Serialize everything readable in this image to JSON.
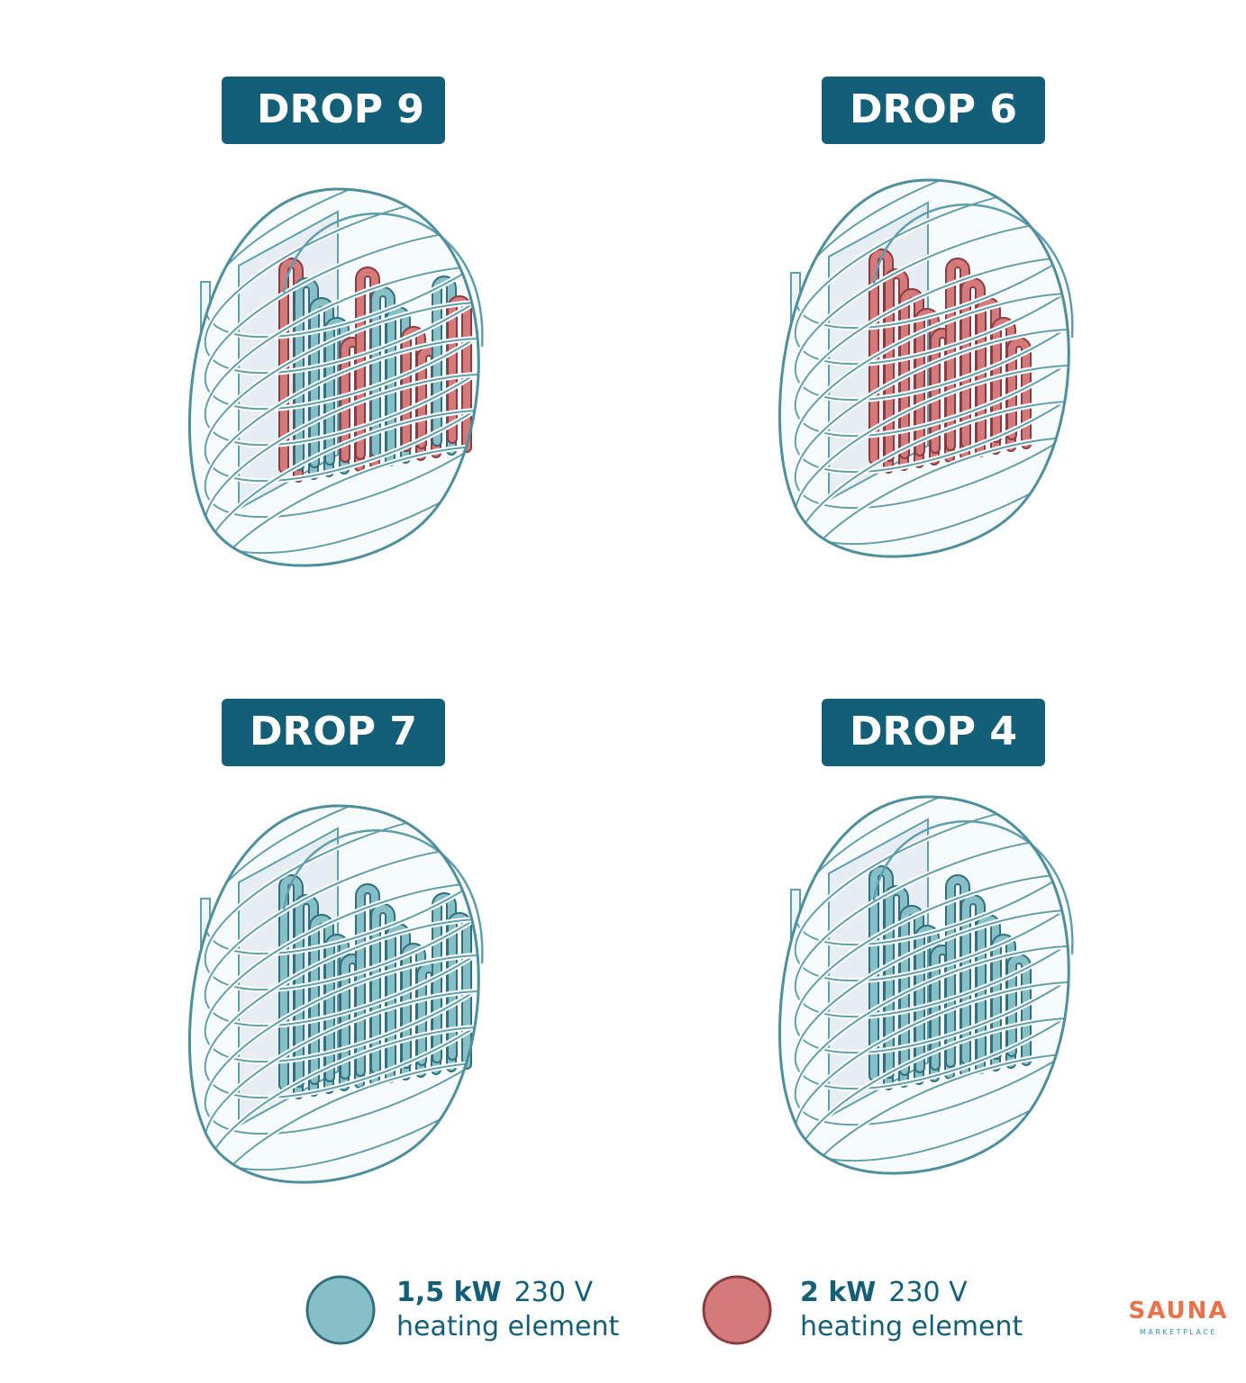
{
  "panels": [
    {
      "title": "DROP 9"
    },
    {
      "title": "DROP 6"
    },
    {
      "title": "DROP 7"
    },
    {
      "title": "DROP 4"
    }
  ],
  "legend": [
    {
      "power": "1,5 kW",
      "voltage": "230 V",
      "label": "heating element",
      "color": "#86bfc6"
    },
    {
      "power": "2 kW",
      "voltage": "230 V",
      "label": "heating element",
      "color": "#d57a7a"
    }
  ],
  "logo": {
    "name": "SAUNA",
    "subtitle": "MARKETPLACE"
  }
}
